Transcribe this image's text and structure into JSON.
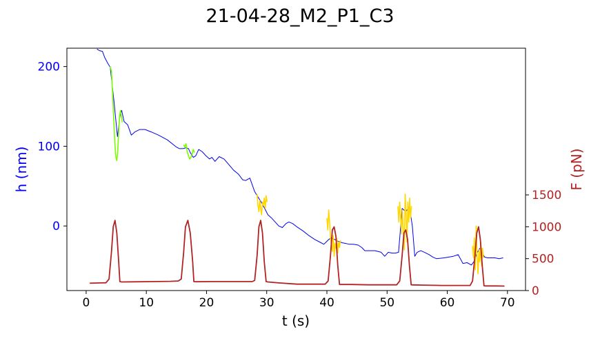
{
  "chart_data": {
    "type": "line",
    "title": "21-04-28_M2_P1_C3",
    "xlabel": "t (s)",
    "ylabel_left": "h (nm)",
    "ylabel_right": "F (pN)",
    "xlim": [
      -3.2,
      73.0
    ],
    "ylim_left": [
      -81,
      223
    ],
    "ylim_right": [
      0,
      3800
    ],
    "x_ticks": [
      "0",
      "10",
      "20",
      "30",
      "40",
      "50",
      "60",
      "70"
    ],
    "x_tick_values": [
      0,
      10,
      20,
      30,
      40,
      50,
      60,
      70
    ],
    "y_left_ticks": [
      "0",
      "100",
      "200"
    ],
    "y_left_tick_values": [
      0,
      100,
      200
    ],
    "y_right_ticks": [
      "0",
      "500",
      "1000",
      "1500"
    ],
    "y_right_tick_values": [
      0,
      500,
      1000,
      1500
    ],
    "grid": false,
    "legend": "none",
    "colors": {
      "height": "#0000ee",
      "compression_green": "#7cfc00",
      "compression_gold": "#ffd700",
      "force": "#b22222",
      "left_axis": "#0000ff",
      "right_axis": "#b22222"
    },
    "series": [
      {
        "axis": "left",
        "color": "#0000ee",
        "width": 1,
        "x": [
          1.8,
          2.2,
          2.7,
          3.1,
          3.6,
          4.0,
          4.6,
          5.2,
          5.6,
          5.9,
          6.3,
          6.9,
          7.5,
          8.1,
          8.9,
          9.8,
          10.8,
          12.0,
          13.5,
          15.0,
          15.5,
          16.1,
          16.6,
          17.0,
          17.3,
          17.8,
          18.2,
          18.7,
          19.3,
          19.9,
          20.5,
          20.9,
          21.4,
          22.1,
          22.9,
          23.7,
          24.5,
          25.3,
          26.0,
          26.5,
          27.2,
          28.0,
          28.5,
          29.0,
          29.6,
          30.2,
          30.8,
          31.4,
          32.0,
          32.6,
          33.2,
          33.7,
          34.3,
          35.0,
          36.0,
          37.0,
          38.0,
          39.0,
          39.5,
          39.9,
          40.3,
          40.7,
          41.3,
          41.8,
          42.5,
          43.2,
          43.7,
          44.4,
          45.2,
          45.8,
          46.3,
          48.0,
          49.0,
          49.6,
          50.2,
          50.8,
          51.4,
          51.9,
          52.5,
          53.1,
          53.7,
          54.2,
          54.6,
          55.0,
          55.6,
          56.2,
          57.0,
          57.6,
          58.2,
          59.5,
          61.0,
          61.8,
          62.6,
          63.3,
          64.0,
          64.5,
          65.0,
          65.4,
          65.8,
          66.2,
          66.7,
          67.3,
          67.9,
          68.6,
          69.3
        ],
        "y": [
          222,
          220,
          219,
          211,
          204,
          199,
          158,
          112,
          137,
          145,
          131,
          127,
          114,
          118,
          121,
          121,
          118,
          114,
          108,
          99,
          97,
          97,
          98,
          97,
          92,
          86,
          88,
          96,
          93,
          88,
          84,
          86,
          81,
          87,
          84,
          77,
          70,
          65,
          58,
          57,
          60,
          43,
          37,
          31,
          23,
          14,
          10,
          5,
          0,
          -2,
          3,
          5,
          3,
          -1,
          -6,
          -12,
          -17,
          -21,
          -23,
          -20,
          -17,
          -15,
          -17,
          -19,
          -21,
          -22,
          -23,
          -23,
          -24,
          -27,
          -31,
          -31,
          -33,
          -38,
          -33,
          -34,
          -34,
          -33,
          22,
          18,
          24,
          0,
          -38,
          -33,
          -31,
          -33,
          -36,
          -39,
          -41,
          -40,
          -38,
          -36,
          -47,
          -46,
          -49,
          -44,
          -33,
          -28,
          -34,
          -39,
          -40,
          -40,
          -40,
          -41,
          -40
        ]
      },
      {
        "axis": "left",
        "color": "#7cfc00",
        "width": 1.6,
        "x": [
          4.0,
          4.2,
          4.4,
          4.6,
          4.8,
          4.95,
          5.1,
          5.25,
          5.4,
          5.55,
          5.7,
          5.85,
          6.0
        ],
        "y": [
          200,
          194,
          165,
          130,
          100,
          86,
          82,
          94,
          118,
          137,
          145,
          138,
          130
        ]
      },
      {
        "axis": "left",
        "color": "#7cfc00",
        "width": 1.6,
        "x": [
          16.2,
          16.4,
          16.6,
          16.8,
          17.0,
          17.2,
          17.4,
          17.6,
          17.8,
          18.0
        ],
        "y": [
          102,
          99,
          103,
          93,
          88,
          84,
          86,
          90,
          96,
          92
        ]
      },
      {
        "axis": "left",
        "color": "#ffd700",
        "width": 1.6,
        "x": [
          28.4,
          28.55,
          28.7,
          28.85,
          29.0,
          29.15,
          29.3,
          29.45,
          29.6,
          29.75,
          29.9,
          30.05
        ],
        "y": [
          40,
          25,
          18,
          32,
          22,
          14,
          30,
          26,
          35,
          22,
          38,
          30
        ]
      },
      {
        "axis": "left",
        "color": "#ffd700",
        "width": 1.6,
        "x": [
          40.0,
          40.15,
          40.3,
          40.45,
          40.6,
          40.75,
          40.9,
          41.05,
          41.2,
          41.35,
          41.5,
          41.65,
          41.8,
          41.95,
          42.1,
          42.25
        ],
        "y": [
          10,
          -5,
          20,
          5,
          -15,
          -25,
          -32,
          -12,
          -38,
          -22,
          -28,
          -16,
          -34,
          -20,
          -27,
          -18
        ]
      },
      {
        "axis": "left",
        "color": "#ffd700",
        "width": 1.6,
        "x": [
          51.8,
          51.95,
          52.1,
          52.25,
          52.4,
          52.55,
          52.7,
          52.85,
          53.0,
          53.15,
          53.3,
          53.45,
          53.6,
          53.75,
          53.9,
          54.05
        ],
        "y": [
          25,
          5,
          30,
          12,
          -10,
          20,
          -5,
          -30,
          40,
          15,
          -20,
          30,
          5,
          35,
          10,
          25
        ]
      },
      {
        "axis": "left",
        "color": "#ffd700",
        "width": 1.6,
        "x": [
          64.2,
          64.35,
          64.5,
          64.65,
          64.8,
          64.95,
          65.1,
          65.25,
          65.4,
          65.55,
          65.7,
          65.85,
          66.0
        ],
        "y": [
          -25,
          -40,
          -15,
          -55,
          0,
          -35,
          -60,
          -30,
          -45,
          -20,
          -50,
          -28,
          -40
        ]
      },
      {
        "axis": "right",
        "color": "#b22222",
        "width": 1.8,
        "x": [
          0.6,
          1.5,
          2.5,
          3.3,
          3.8,
          4.2,
          4.5,
          4.8,
          5.1,
          5.4,
          5.6,
          5.9,
          8.0,
          11.0,
          14.0,
          15.3,
          15.8,
          16.2,
          16.5,
          16.9,
          17.3,
          17.7,
          17.9,
          18.3,
          21.0,
          24.0,
          26.5,
          27.6,
          28.0,
          28.4,
          28.7,
          29.0,
          29.3,
          29.6,
          29.9,
          30.2,
          32.0,
          35.0,
          38.0,
          39.7,
          40.2,
          40.6,
          40.9,
          41.2,
          41.5,
          41.8,
          42.1,
          42.4,
          44.0,
          47.0,
          50.0,
          51.6,
          52.1,
          52.5,
          52.8,
          53.1,
          53.4,
          53.7,
          54.0,
          54.3,
          56.0,
          59.0,
          62.0,
          63.8,
          64.2,
          64.6,
          64.9,
          65.2,
          65.5,
          65.8,
          66.1,
          66.4,
          68.0,
          69.5
        ],
        "y": [
          115,
          118,
          120,
          122,
          180,
          600,
          1000,
          1100,
          900,
          450,
          140,
          135,
          137,
          140,
          145,
          150,
          180,
          600,
          1000,
          1100,
          900,
          450,
          140,
          138,
          140,
          140,
          140,
          140,
          160,
          550,
          1000,
          1100,
          900,
          450,
          140,
          135,
          120,
          100,
          100,
          100,
          150,
          550,
          950,
          1000,
          850,
          400,
          95,
          95,
          95,
          90,
          90,
          90,
          150,
          550,
          900,
          950,
          800,
          400,
          90,
          88,
          85,
          80,
          80,
          80,
          150,
          550,
          900,
          1000,
          800,
          400,
          75,
          72,
          72,
          70
        ]
      }
    ]
  }
}
